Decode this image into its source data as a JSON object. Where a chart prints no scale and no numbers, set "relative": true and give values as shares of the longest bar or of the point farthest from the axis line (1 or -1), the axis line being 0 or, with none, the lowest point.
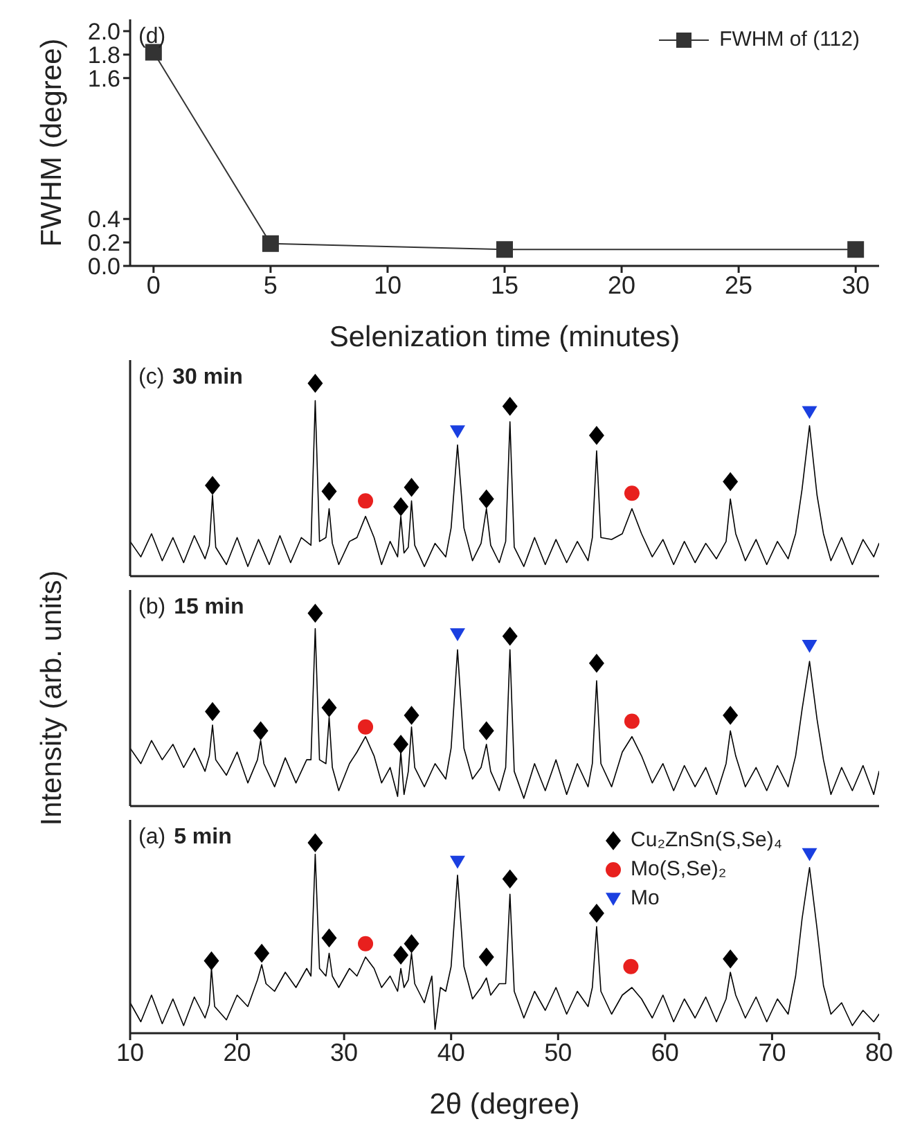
{
  "chart_data": [
    {
      "type": "line",
      "x": [
        0,
        5,
        15,
        30
      ],
      "xlabel": "Selenization time (minutes)",
      "ylabel": "FWHM (degree)",
      "xlim": [
        -1,
        31
      ],
      "xticks": [
        0,
        5,
        10,
        15,
        20,
        25,
        30
      ],
      "ylim": [
        0,
        2.1
      ],
      "yticks": [
        {
          "value": 0,
          "label": "0.0"
        },
        0.2,
        0.4,
        1.6,
        1.8,
        {
          "value": 2,
          "label": "2.0"
        }
      ],
      "legend": "top right",
      "marker": "square",
      "annotations": [
        "(d)"
      ],
      "series": [
        {
          "name": "FWHM of (112)",
          "color": "#333333",
          "values": [
            1.82,
            0.19,
            0.14,
            0.14
          ]
        }
      ]
    },
    {
      "type": "line",
      "relative": true,
      "xlim": [
        10,
        80
      ],
      "xticks": [
        10,
        20,
        30,
        40,
        50,
        60,
        70,
        80
      ],
      "tick_labels": false,
      "annotations": [
        "(c)",
        "30 min"
      ],
      "series": [
        {
          "color": "#000000",
          "x": [
            10,
            11,
            12,
            13,
            14,
            15,
            16,
            17,
            17.4,
            17.7,
            18,
            19,
            20,
            21,
            22,
            23,
            24,
            25,
            26,
            26.9,
            27.3,
            27.7,
            28.3,
            28.6,
            28.9,
            29.5,
            30.5,
            31.2,
            32,
            32.8,
            33.5,
            34.3,
            35,
            35.3,
            35.6,
            36,
            36.3,
            36.6,
            37.5,
            38.5,
            39.5,
            40,
            40.6,
            41.2,
            42,
            42.8,
            43.3,
            43.7,
            44.5,
            45.1,
            45.5,
            45.9,
            46.8,
            47.8,
            48.8,
            49.8,
            50.8,
            51.8,
            52.8,
            53.2,
            53.6,
            54,
            55,
            56,
            56.9,
            57.8,
            58.8,
            59.8,
            60.8,
            61.8,
            62.8,
            63.8,
            64.8,
            65.7,
            66.1,
            66.6,
            67.5,
            68.5,
            69.5,
            70.5,
            71.5,
            72.2,
            72.8,
            73.5,
            74.2,
            74.8,
            75.5,
            76.5,
            77.5,
            78.5,
            79.5,
            80
          ],
          "values": [
            0.18,
            0.1,
            0.22,
            0.08,
            0.2,
            0.07,
            0.21,
            0.09,
            0.16,
            0.42,
            0.15,
            0.06,
            0.2,
            0.05,
            0.19,
            0.06,
            0.21,
            0.07,
            0.2,
            0.16,
            0.91,
            0.18,
            0.2,
            0.35,
            0.17,
            0.06,
            0.18,
            0.2,
            0.31,
            0.2,
            0.06,
            0.18,
            0.1,
            0.31,
            0.12,
            0.15,
            0.39,
            0.16,
            0.05,
            0.17,
            0.1,
            0.25,
            0.68,
            0.25,
            0.08,
            0.17,
            0.35,
            0.16,
            0.07,
            0.18,
            0.8,
            0.15,
            0.05,
            0.2,
            0.06,
            0.19,
            0.07,
            0.18,
            0.08,
            0.2,
            0.65,
            0.2,
            0.19,
            0.22,
            0.35,
            0.22,
            0.1,
            0.19,
            0.06,
            0.18,
            0.07,
            0.17,
            0.09,
            0.18,
            0.4,
            0.22,
            0.08,
            0.19,
            0.06,
            0.18,
            0.09,
            0.22,
            0.45,
            0.78,
            0.42,
            0.22,
            0.08,
            0.2,
            0.06,
            0.19,
            0.1,
            0.17
          ]
        },
        {
          "type": "scatter",
          "marker": "diamond",
          "color": "#000000",
          "x": [
            17.7,
            27.3,
            28.6,
            35.3,
            36.3,
            43.3,
            45.5,
            53.6,
            66.1
          ],
          "values": [
            0.47,
            1.0,
            0.44,
            0.36,
            0.46,
            0.4,
            0.88,
            0.73,
            0.49
          ]
        },
        {
          "type": "scatter",
          "marker": "circle",
          "color": "#e8201e",
          "x": [
            32,
            56.9
          ],
          "values": [
            0.39,
            0.43
          ]
        },
        {
          "type": "scatter",
          "marker": "triangle",
          "color": "#1a3fe0",
          "x": [
            40.6,
            73.5
          ],
          "values": [
            0.75,
            0.85
          ]
        }
      ]
    },
    {
      "type": "line",
      "relative": true,
      "xlim": [
        10,
        80
      ],
      "xticks": [
        10,
        20,
        30,
        40,
        50,
        60,
        70,
        80
      ],
      "tick_labels": false,
      "ylabel": "Intensity (arb. units)",
      "annotations": [
        "(b)",
        "15 min"
      ],
      "series": [
        {
          "color": "#000000",
          "x": [
            10,
            11,
            12,
            13,
            14,
            15,
            16,
            17,
            17.4,
            17.7,
            18,
            19,
            20,
            21,
            21.9,
            22.2,
            22.5,
            23.5,
            24.5,
            25.5,
            26.5,
            26.9,
            27.3,
            27.7,
            28.3,
            28.6,
            28.9,
            29.5,
            30.5,
            31.2,
            32,
            32.8,
            33.5,
            34.3,
            35,
            35.3,
            35.6,
            36,
            36.3,
            36.6,
            37.5,
            38.5,
            39.5,
            40,
            40.6,
            41.2,
            42,
            42.8,
            43.3,
            43.7,
            44.5,
            45.1,
            45.5,
            45.9,
            46.8,
            47.8,
            48.8,
            49.8,
            50.8,
            51.8,
            52.8,
            53.2,
            53.6,
            54,
            55,
            56,
            56.9,
            57.8,
            58.8,
            59.8,
            60.8,
            61.8,
            62.8,
            63.8,
            64.8,
            65.7,
            66.1,
            66.6,
            67.5,
            68.5,
            69.5,
            70.5,
            71.5,
            72.2,
            72.8,
            73.5,
            74.2,
            74.8,
            75.5,
            76.5,
            77.5,
            78.5,
            79.5,
            80
          ],
          "values": [
            0.3,
            0.22,
            0.34,
            0.24,
            0.32,
            0.2,
            0.3,
            0.18,
            0.26,
            0.42,
            0.24,
            0.16,
            0.28,
            0.12,
            0.24,
            0.34,
            0.22,
            0.1,
            0.25,
            0.12,
            0.24,
            0.24,
            0.92,
            0.24,
            0.22,
            0.46,
            0.2,
            0.08,
            0.22,
            0.28,
            0.36,
            0.26,
            0.12,
            0.2,
            0.05,
            0.28,
            0.06,
            0.18,
            0.41,
            0.2,
            0.1,
            0.22,
            0.14,
            0.3,
            0.81,
            0.3,
            0.14,
            0.2,
            0.32,
            0.18,
            0.08,
            0.2,
            0.81,
            0.18,
            0.04,
            0.22,
            0.08,
            0.24,
            0.06,
            0.22,
            0.1,
            0.22,
            0.65,
            0.22,
            0.1,
            0.28,
            0.36,
            0.26,
            0.12,
            0.22,
            0.08,
            0.21,
            0.1,
            0.2,
            0.06,
            0.22,
            0.39,
            0.26,
            0.1,
            0.2,
            0.08,
            0.21,
            0.1,
            0.26,
            0.5,
            0.75,
            0.45,
            0.24,
            0.06,
            0.2,
            0.08,
            0.21,
            0.06,
            0.18
          ]
        },
        {
          "type": "scatter",
          "marker": "diamond",
          "color": "#000000",
          "x": [
            17.7,
            22.2,
            27.3,
            28.6,
            35.3,
            36.3,
            43.3,
            45.5,
            53.6,
            66.1
          ],
          "values": [
            0.49,
            0.39,
            1.0,
            0.51,
            0.32,
            0.47,
            0.39,
            0.88,
            0.74,
            0.47
          ]
        },
        {
          "type": "scatter",
          "marker": "circle",
          "color": "#e8201e",
          "x": [
            32,
            56.9
          ],
          "values": [
            0.41,
            0.44
          ]
        },
        {
          "type": "scatter",
          "marker": "triangle",
          "color": "#1a3fe0",
          "x": [
            40.6,
            73.5
          ],
          "values": [
            0.89,
            0.83
          ]
        }
      ]
    },
    {
      "type": "line",
      "relative": true,
      "xlim": [
        10,
        80
      ],
      "xticks": [
        10,
        20,
        30,
        40,
        50,
        60,
        70,
        80
      ],
      "tick_labels": "x",
      "xlabel": "2θ (degree)",
      "legend": "top right",
      "annotations": [
        "(a)",
        "5 min"
      ],
      "series": [
        {
          "color": "#000000",
          "x": [
            10,
            11,
            12,
            13,
            14,
            15,
            16,
            17,
            17.4,
            17.6,
            17.9,
            19,
            20,
            21,
            21.9,
            22.3,
            22.7,
            23.5,
            24.5,
            25.5,
            26.5,
            26.9,
            27.3,
            27.7,
            28.3,
            28.6,
            28.9,
            29.5,
            30.5,
            31.2,
            32,
            32.8,
            33.5,
            34.3,
            35,
            35.3,
            35.6,
            36,
            36.3,
            36.6,
            37.5,
            38.2,
            38.5,
            39,
            39.5,
            40,
            40.6,
            41.2,
            42,
            42.8,
            43.3,
            43.7,
            44.5,
            45.1,
            45.5,
            45.9,
            46.8,
            47.8,
            48.8,
            49.8,
            50.8,
            51.8,
            52.8,
            53.2,
            53.6,
            54,
            55,
            56,
            56.9,
            57.8,
            58.8,
            59.8,
            60.8,
            61.8,
            62.8,
            63.8,
            64.8,
            65.7,
            66.1,
            66.6,
            67.5,
            68.5,
            69.5,
            70.5,
            71.5,
            72.2,
            72.8,
            73.5,
            74.2,
            74.8,
            75.5,
            76.5,
            77.5,
            78.5,
            79.5,
            80
          ],
          "values": [
            0.16,
            0.06,
            0.2,
            0.05,
            0.18,
            0.04,
            0.19,
            0.08,
            0.15,
            0.34,
            0.14,
            0.07,
            0.2,
            0.14,
            0.28,
            0.36,
            0.26,
            0.22,
            0.32,
            0.24,
            0.34,
            0.3,
            0.94,
            0.34,
            0.3,
            0.42,
            0.3,
            0.24,
            0.34,
            0.3,
            0.4,
            0.34,
            0.24,
            0.3,
            0.22,
            0.34,
            0.24,
            0.28,
            0.42,
            0.26,
            0.16,
            0.3,
            0.02,
            0.24,
            0.22,
            0.35,
            0.83,
            0.35,
            0.18,
            0.24,
            0.29,
            0.2,
            0.26,
            0.26,
            0.73,
            0.22,
            0.08,
            0.22,
            0.12,
            0.24,
            0.1,
            0.22,
            0.14,
            0.24,
            0.56,
            0.22,
            0.1,
            0.2,
            0.24,
            0.18,
            0.08,
            0.2,
            0.06,
            0.18,
            0.08,
            0.19,
            0.06,
            0.18,
            0.32,
            0.2,
            0.08,
            0.19,
            0.06,
            0.18,
            0.1,
            0.3,
            0.6,
            0.87,
            0.55,
            0.25,
            0.1,
            0.16,
            0.04,
            0.12,
            0.06,
            0.1
          ]
        },
        {
          "type": "scatter",
          "marker": "diamond",
          "name": "Cu₂ZnSn(S,Se)₄",
          "color": "#000000",
          "x": [
            17.6,
            22.3,
            27.3,
            28.6,
            35.3,
            36.3,
            43.3,
            45.5,
            53.6,
            66.1
          ],
          "values": [
            0.38,
            0.42,
            1.0,
            0.5,
            0.41,
            0.47,
            0.4,
            0.81,
            0.63,
            0.39
          ]
        },
        {
          "type": "scatter",
          "marker": "circle",
          "name": "Mo(S,Se)₂",
          "color": "#e8201e",
          "x": [
            32,
            56.8
          ],
          "values": [
            0.47,
            0.35
          ]
        },
        {
          "type": "scatter",
          "marker": "triangle",
          "name": "Mo",
          "color": "#1a3fe0",
          "x": [
            40.6,
            73.5
          ],
          "values": [
            0.9,
            0.94
          ]
        }
      ]
    }
  ]
}
